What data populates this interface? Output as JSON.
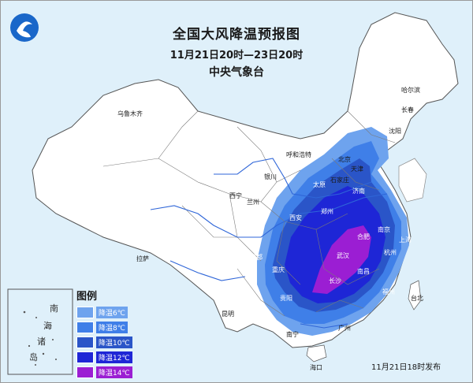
{
  "title": {
    "main": "全国大风降温预报图",
    "time": "11月21日20时—23日20时",
    "org": "中央气象台"
  },
  "legend": {
    "title": "图例",
    "items": [
      {
        "label": "降温6℃",
        "color": "#6ea3ee"
      },
      {
        "label": "降温8℃",
        "color": "#3f7fe8"
      },
      {
        "label": "降温10℃",
        "color": "#2a55c8"
      },
      {
        "label": "降温12℃",
        "color": "#1e26d6"
      },
      {
        "label": "降温14℃",
        "color": "#9b1ed3"
      }
    ]
  },
  "inset": {
    "labels": [
      "南",
      "海",
      "诸",
      "岛"
    ]
  },
  "issue_time": "11月21日18时发布",
  "cities": {
    "urumqi": "乌鲁木齐",
    "harbin": "哈尔滨",
    "changchun": "长春",
    "shenyang": "沈阳",
    "hohhot": "呼和浩特",
    "beijing": "北京",
    "tianjin": "天津",
    "shijiazhuang": "石家庄",
    "taiyuan": "太原",
    "jinan": "济南",
    "yinchuan": "银川",
    "xining": "西宁",
    "lanzhou": "兰州",
    "xian": "西安",
    "zhengzhou": "郑州",
    "hefei": "合肥",
    "nanjing": "南京",
    "shanghai": "上海",
    "wuhan": "武汉",
    "hangzhou": "杭州",
    "chengdu": "成都",
    "chongqing": "重庆",
    "changsha": "长沙",
    "nanchang": "南昌",
    "fuzhou": "福州",
    "taibei": "台北",
    "guiyang": "贵阳",
    "kunming": "昆明",
    "lhasa": "拉萨",
    "nanning": "南宁",
    "guangzhou": "广州",
    "haikou": "海口"
  }
}
